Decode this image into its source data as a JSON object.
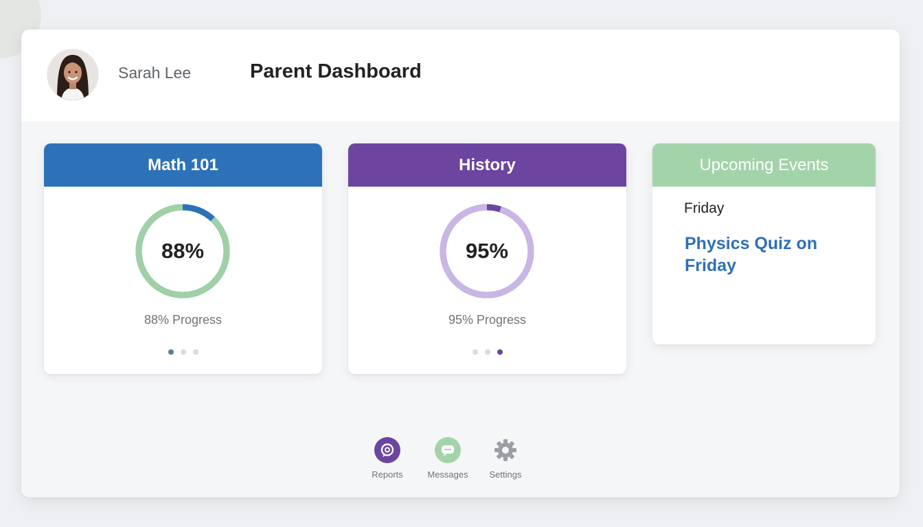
{
  "header": {
    "user_name": "Sarah Lee",
    "title": "Parent Dashboard"
  },
  "courses": [
    {
      "name": "Math 101",
      "percent_text": "88%",
      "progress_label": "88% Progress",
      "progress": 0.88,
      "header_color": "#2d72b8",
      "ring_progress_color": "#9fd0a6",
      "ring_rest_color": "#2d72b8",
      "active_dot": 0
    },
    {
      "name": "History",
      "percent_text": "95%",
      "progress_label": "95% Progress",
      "progress": 0.95,
      "header_color": "#6b45a0",
      "ring_progress_color": "#c9b6e4",
      "ring_rest_color": "#6b45a0",
      "active_dot": 2
    }
  ],
  "events": {
    "title": "Upcoming Events",
    "header_color": "#a3d3a8",
    "day": "Friday",
    "item": "Physics Quiz on Friday"
  },
  "nav": [
    {
      "label": "Reports",
      "icon": "reports-icon",
      "color": "#6b45a0"
    },
    {
      "label": "Messages",
      "icon": "chat-icon",
      "color": "#a3d3a8"
    },
    {
      "label": "Settings",
      "icon": "gear-icon",
      "color": "#9b9ea3"
    }
  ]
}
